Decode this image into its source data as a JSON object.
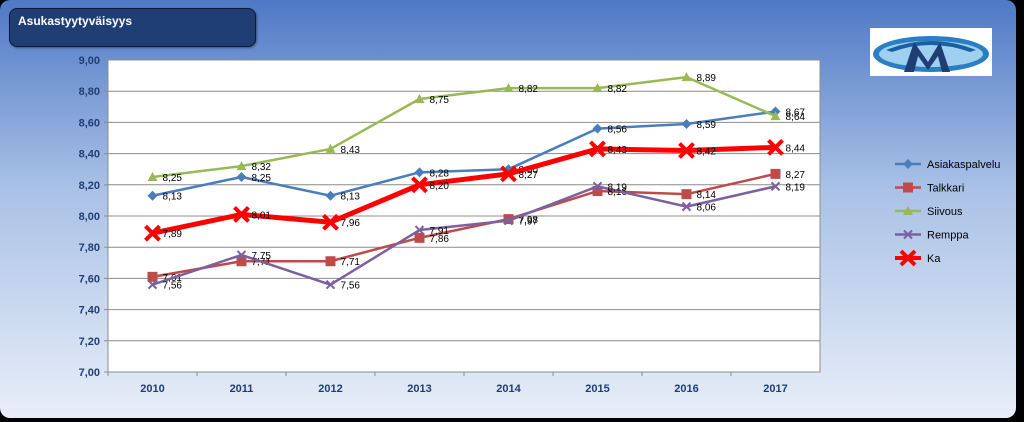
{
  "title": "Asukastyytyväisyys",
  "logo_icon": "company-logo-icon",
  "chart_data": {
    "type": "line",
    "title": "Asukastyytyväisyys",
    "xlabel": "",
    "ylabel": "",
    "categories": [
      "2010",
      "2011",
      "2012",
      "2013",
      "2014",
      "2015",
      "2016",
      "2017"
    ],
    "ylim": [
      7.0,
      9.0
    ],
    "ystep": 0.2,
    "ytick_labels": [
      "7,00",
      "7,20",
      "7,40",
      "7,60",
      "7,80",
      "8,00",
      "8,20",
      "8,40",
      "8,60",
      "8,80",
      "9,00"
    ],
    "grid": true,
    "legend": "right",
    "series": [
      {
        "name": "Asiakaspalvelu",
        "color": "#4a7ebb",
        "marker": "diamond",
        "values": [
          8.13,
          8.25,
          8.13,
          8.28,
          8.3,
          8.56,
          8.59,
          8.67
        ],
        "labels": [
          "8,13",
          "8,25",
          "8,13",
          "8,28",
          "8,30",
          "8,56",
          "8,59",
          "8,67"
        ]
      },
      {
        "name": "Talkkari",
        "color": "#be4b48",
        "marker": "square",
        "values": [
          7.61,
          7.71,
          7.71,
          7.86,
          7.98,
          8.16,
          8.14,
          8.27
        ],
        "labels": [
          "7,61",
          "7,71",
          "7,71",
          "7,86",
          "7,98",
          "8,16",
          "8,14",
          "8,27"
        ]
      },
      {
        "name": "Siivous",
        "color": "#98b954",
        "marker": "triangle",
        "values": [
          8.25,
          8.32,
          8.43,
          8.75,
          8.82,
          8.82,
          8.89,
          8.64
        ],
        "labels": [
          "8,25",
          "8,32",
          "8,43",
          "8,75",
          "8,82",
          "8,82",
          "8,89",
          "8,64"
        ]
      },
      {
        "name": "Remppa",
        "color": "#7d60a0",
        "marker": "x",
        "values": [
          7.56,
          7.75,
          7.56,
          7.91,
          7.97,
          8.19,
          8.06,
          8.19
        ],
        "labels": [
          "7,56",
          "7,75",
          "7,56",
          "7,91",
          "7,97",
          "8,19",
          "8,06",
          "8,19"
        ]
      },
      {
        "name": "Ka",
        "color": "#ff0000",
        "marker": "bigx",
        "values": [
          7.89,
          8.01,
          7.96,
          8.2,
          8.27,
          8.43,
          8.42,
          8.44
        ],
        "labels": [
          "7,89",
          "8,01",
          "7,96",
          "8,20",
          "8,27",
          "8,43",
          "8,42",
          "8,44"
        ]
      }
    ]
  }
}
